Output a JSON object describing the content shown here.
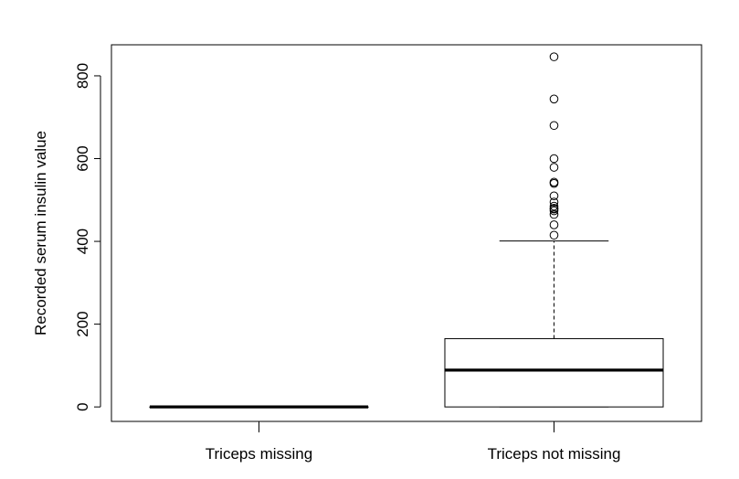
{
  "chart_data": {
    "type": "boxplot",
    "title": "",
    "xlabel": "",
    "ylabel": "Recorded serum insulin value",
    "ylim": [
      -35,
      875
    ],
    "yticks": [
      0,
      200,
      400,
      600,
      800
    ],
    "ytick_labels": [
      "0",
      "200",
      "400",
      "600",
      "800"
    ],
    "categories": [
      "Triceps missing",
      "Triceps not missing"
    ],
    "grid": false,
    "legend": "none",
    "boxes": [
      {
        "category": "Triceps missing",
        "whisker_low": 0,
        "q1": 0,
        "median": 0,
        "q3": 0,
        "whisker_high": 0,
        "outliers": []
      },
      {
        "category": "Triceps not missing",
        "whisker_low": 0,
        "q1": 0,
        "median": 89,
        "q3": 165,
        "whisker_high": 401,
        "outliers": [
          415,
          440,
          465,
          474,
          478,
          480,
          485,
          495,
          510,
          540,
          543,
          579,
          600,
          680,
          744,
          846
        ]
      }
    ]
  }
}
